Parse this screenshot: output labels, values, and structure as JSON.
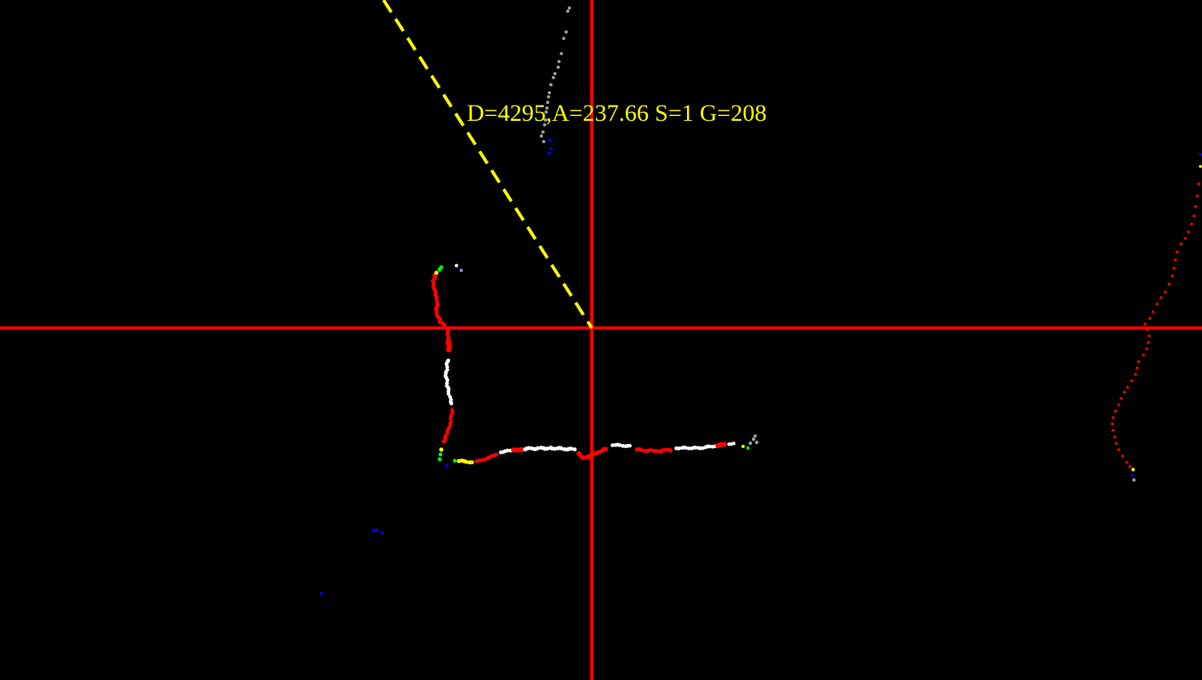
{
  "readout": {
    "text": "D=4295,A=237.66 S=1 G=208",
    "distance": 4295,
    "angle_deg": 237.66,
    "s": 1,
    "g": 208,
    "color": "#ffff00"
  },
  "colors": {
    "background": "#000000",
    "crosshair": "#ff0000",
    "heading_line": "#ffff00",
    "point_palette": [
      "#ffffff",
      "#ff0000",
      "#ffff00",
      "#00ff00",
      "#0000ff",
      "#a0a0a0",
      "#8888cc"
    ]
  }
}
